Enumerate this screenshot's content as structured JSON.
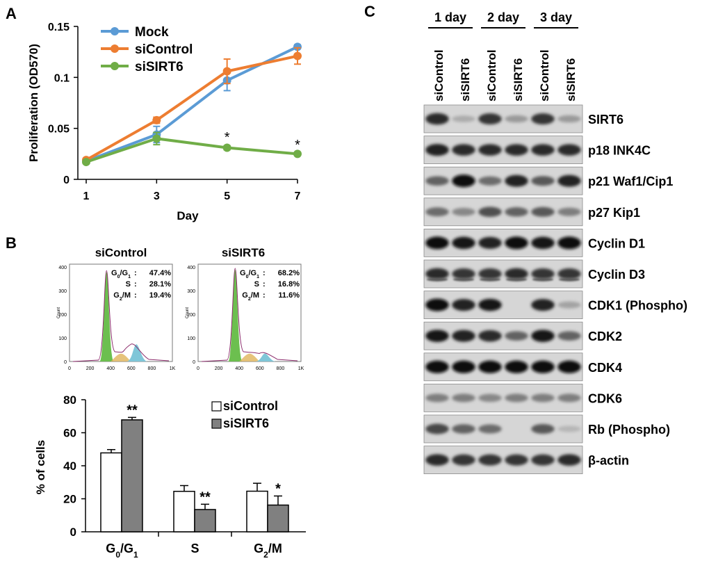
{
  "panels": {
    "a": "A",
    "b": "B",
    "c": "C"
  },
  "chart_data": [
    {
      "type": "line",
      "id": "proliferation",
      "xlabel": "Day",
      "ylabel": "Proliferation (OD570)",
      "x": [
        1,
        3,
        5,
        7
      ],
      "x_ticks": [
        "1",
        "3",
        "5",
        "7"
      ],
      "y_ticks": [
        "0",
        "0.05",
        "0.1",
        "0.15"
      ],
      "xlim": [
        1,
        7
      ],
      "ylim": [
        0,
        0.15
      ],
      "legend_position": "top-left",
      "series": [
        {
          "name": "Mock",
          "color": "#5b9bd5",
          "values": [
            0.018,
            0.044,
            0.097,
            0.13
          ],
          "errors": [
            0.001,
            0.008,
            0.01,
            0.002
          ]
        },
        {
          "name": "siControl",
          "color": "#ed7d31",
          "values": [
            0.019,
            0.058,
            0.106,
            0.121
          ],
          "errors": [
            0.001,
            0.003,
            0.012,
            0.008
          ]
        },
        {
          "name": "siSIRT6",
          "color": "#70ad47",
          "values": [
            0.017,
            0.04,
            0.031,
            0.025
          ],
          "errors": [
            0.001,
            0.006,
            0.002,
            0.001
          ]
        }
      ],
      "annotations": [
        {
          "x": 5,
          "text": "*"
        },
        {
          "x": 7,
          "text": "*"
        }
      ]
    },
    {
      "type": "histogram",
      "id": "flow-sicontrol",
      "title": "siControl",
      "ylabel": "Count",
      "x_ticks": [
        "0",
        "200",
        "400",
        "600",
        "800",
        "1K"
      ],
      "y_ticks": [
        "0",
        "100",
        "200",
        "300",
        "400"
      ],
      "stats": [
        {
          "label": "G0/G1",
          "value": "47.4%"
        },
        {
          "label": "S",
          "value": "28.1%"
        },
        {
          "label": "G2/M",
          "value": "19.4%"
        }
      ],
      "peaks": {
        "g1_position": 360,
        "g1_height": 390,
        "g2_position": 650,
        "g2_height": 75
      }
    },
    {
      "type": "histogram",
      "id": "flow-sisirt6",
      "title": "siSIRT6",
      "ylabel": "Count",
      "x_ticks": [
        "0",
        "200",
        "400",
        "600",
        "800",
        "1K"
      ],
      "y_ticks": [
        "0",
        "100",
        "200",
        "300",
        "400"
      ],
      "stats": [
        {
          "label": "G0/G1",
          "value": "68.2%"
        },
        {
          "label": "S",
          "value": "16.8%"
        },
        {
          "label": "G2/M",
          "value": "11.6%"
        }
      ],
      "peaks": {
        "g1_position": 360,
        "g1_height": 400,
        "g2_position": 650,
        "g2_height": 35
      }
    },
    {
      "type": "bar",
      "id": "cell-cycle",
      "ylabel": "% of cells",
      "categories": [
        "G0/G1",
        "S",
        "G2/M"
      ],
      "y_ticks": [
        "0",
        "20",
        "40",
        "60",
        "80"
      ],
      "ylim": [
        0,
        80
      ],
      "legend_position": "top-right",
      "series": [
        {
          "name": "siControl",
          "color": "#ffffff",
          "values": [
            47.8,
            24.5,
            24.6
          ],
          "errors": [
            2.0,
            3.5,
            4.8
          ]
        },
        {
          "name": "siSIRT6",
          "color": "#808080",
          "values": [
            67.8,
            13.5,
            16.2
          ],
          "errors": [
            1.5,
            3.2,
            5.5
          ]
        }
      ],
      "annotations": [
        {
          "category": "G0/G1",
          "text": "**"
        },
        {
          "category": "S",
          "text": "**"
        },
        {
          "category": "G2/M",
          "text": "*"
        }
      ]
    },
    {
      "type": "western-blot",
      "id": "blot",
      "groups": [
        "1 day",
        "2 day",
        "3 day"
      ],
      "lanes": [
        "siControl",
        "siSIRT6",
        "siControl",
        "siSIRT6",
        "siControl",
        "siSIRT6"
      ],
      "rows": [
        {
          "label": "SIRT6",
          "intensity": [
            0.85,
            0.15,
            0.8,
            0.25,
            0.8,
            0.25
          ]
        },
        {
          "label": "p18 INK4C",
          "intensity": [
            0.9,
            0.85,
            0.85,
            0.85,
            0.85,
            0.85
          ]
        },
        {
          "label": "p21 Waf1/Cip1",
          "intensity": [
            0.55,
            1.0,
            0.5,
            0.9,
            0.6,
            0.9
          ]
        },
        {
          "label": "p27 Kip1",
          "intensity": [
            0.5,
            0.35,
            0.65,
            0.55,
            0.6,
            0.4
          ]
        },
        {
          "label": "Cyclin D1",
          "intensity": [
            1.0,
            0.95,
            0.9,
            1.0,
            0.95,
            1.0
          ]
        },
        {
          "label": "Cyclin D3",
          "intensity": [
            0.85,
            0.8,
            0.8,
            0.85,
            0.8,
            0.8
          ]
        },
        {
          "label": "CDK1 (Phospho)",
          "intensity": [
            1.0,
            0.9,
            0.95,
            0.0,
            0.9,
            0.2
          ]
        },
        {
          "label": "CDK2",
          "intensity": [
            0.95,
            0.9,
            0.85,
            0.55,
            0.95,
            0.55
          ]
        },
        {
          "label": "CDK4",
          "intensity": [
            1.0,
            1.0,
            1.0,
            1.0,
            1.0,
            1.0
          ]
        },
        {
          "label": "CDK6",
          "intensity": [
            0.4,
            0.4,
            0.35,
            0.4,
            0.4,
            0.4
          ]
        },
        {
          "label": "Rb (Phospho)",
          "intensity": [
            0.7,
            0.55,
            0.5,
            0.0,
            0.6,
            0.1
          ]
        },
        {
          "label": "β-actin",
          "intensity": [
            0.85,
            0.8,
            0.8,
            0.8,
            0.8,
            0.85
          ]
        }
      ]
    }
  ]
}
